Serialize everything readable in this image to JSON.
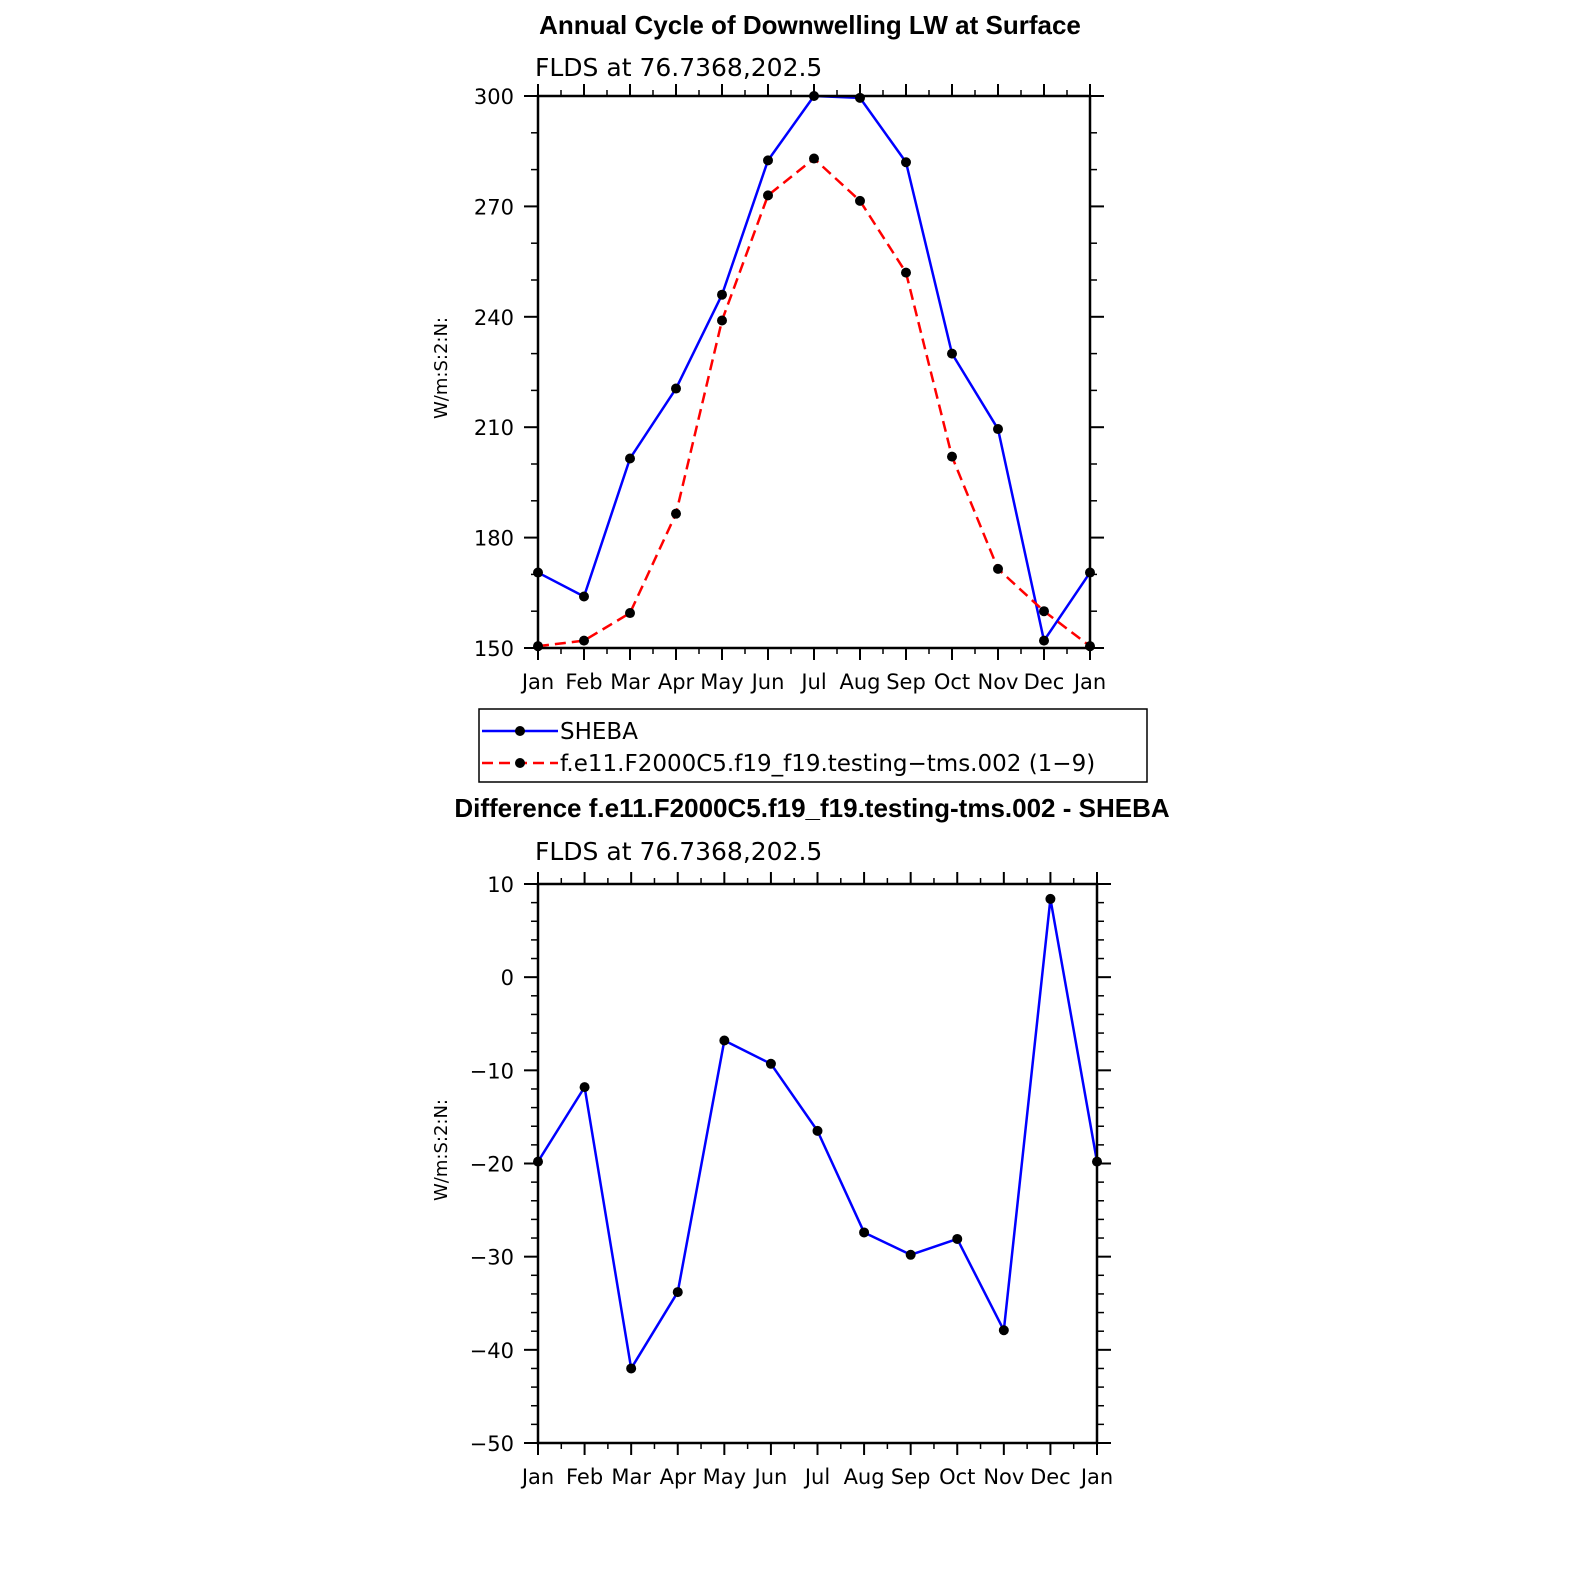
{
  "chart_data": [
    {
      "type": "line",
      "title": "Annual Cycle of Downwelling LW at Surface",
      "subtitle": "FLDS at 76.7368,202.5",
      "ylabel": "W/m:S:2:N:",
      "xlabel": "",
      "categories": [
        "Jan",
        "Feb",
        "Mar",
        "Apr",
        "May",
        "Jun",
        "Jul",
        "Aug",
        "Sep",
        "Oct",
        "Nov",
        "Dec",
        "Jan"
      ],
      "ylim": [
        150,
        300
      ],
      "yticks": [
        "150",
        "180",
        "210",
        "240",
        "270",
        "300"
      ],
      "series": [
        {
          "name": "SHEBA",
          "color": "#0000ff",
          "dash": "solid",
          "values": [
            170.5,
            164,
            201.5,
            220.5,
            246,
            282.5,
            300,
            299.5,
            282,
            230,
            209.5,
            152,
            170.5
          ]
        },
        {
          "name": "f.e11.F2000C5.f19_f19.testing−tms.002 (1−9)",
          "color": "#ff0000",
          "dash": "dashed",
          "values": [
            150.5,
            152,
            159.5,
            186.5,
            239,
            273,
            283,
            271.5,
            252,
            202,
            171.5,
            160,
            150.5
          ]
        }
      ],
      "legend": "below"
    },
    {
      "type": "line",
      "title": "Difference f.e11.F2000C5.f19_f19.testing-tms.002 - SHEBA",
      "subtitle": "FLDS at 76.7368,202.5",
      "ylabel": "W/m:S:2:N:",
      "xlabel": "",
      "categories": [
        "Jan",
        "Feb",
        "Mar",
        "Apr",
        "May",
        "Jun",
        "Jul",
        "Aug",
        "Sep",
        "Oct",
        "Nov",
        "Dec",
        "Jan"
      ],
      "ylim": [
        -50,
        10
      ],
      "yticks": [
        "−50",
        "−40",
        "−30",
        "−20",
        "−10",
        "0",
        "10"
      ],
      "series": [
        {
          "color": "#0000ff",
          "dash": "solid",
          "values": [
            -19.8,
            -11.8,
            -42,
            -33.8,
            -6.8,
            -9.3,
            -16.5,
            -27.4,
            -29.8,
            -28.1,
            -37.9,
            8.4,
            -19.8
          ]
        }
      ]
    }
  ]
}
